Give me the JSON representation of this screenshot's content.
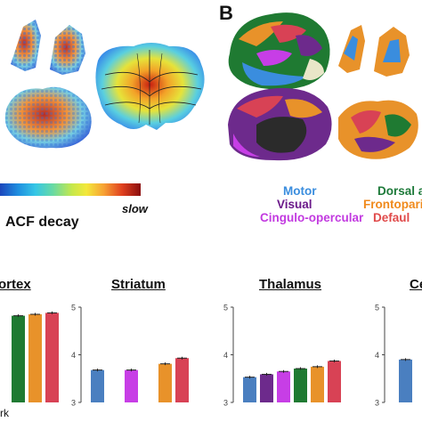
{
  "panel_b_letter": "B",
  "colorbar": {
    "end_label": "slow",
    "title": "ACF decay"
  },
  "legend": [
    {
      "label": "Motor",
      "color": "#3a8dde"
    },
    {
      "label": "Visual",
      "color": "#6b1a8a"
    },
    {
      "label": "Cingulo-opercular",
      "color": "#c23ae0"
    },
    {
      "label": "Dorsal a",
      "color": "#1e7a3a"
    },
    {
      "label": "Frontopari",
      "color": "#f08a1c"
    },
    {
      "label": "Defaul",
      "color": "#e04a4a"
    }
  ],
  "left_fragment": "rk",
  "network_colors": {
    "motor": "#4a7fc0",
    "visual": "#6d2a8c",
    "cingulo": "#c73ee6",
    "dorsal": "#1f7a32",
    "fronto": "#e8922a",
    "default": "#d84255"
  },
  "chart_data": [
    {
      "type": "bar",
      "title": "ortex",
      "ylim": [
        3,
        5
      ],
      "series": [
        {
          "values": [
            null,
            4.82,
            4.85,
            4.88
          ],
          "colors": [
            "#1f7a32",
            "#1f7a32",
            "#e8922a",
            "#d84255"
          ]
        }
      ]
    },
    {
      "type": "bar",
      "title": "Striatum",
      "ylim": [
        3,
        5
      ],
      "yticks": [
        3,
        4,
        5
      ],
      "series": [
        {
          "values": [
            3.68,
            null,
            3.68,
            null,
            3.81,
            3.93
          ],
          "colors": [
            "#4a7fc0",
            "#6d2a8c",
            "#c73ee6",
            "#1f7a32",
            "#e8922a",
            "#d84255"
          ]
        }
      ]
    },
    {
      "type": "bar",
      "title": "Thalamus",
      "ylim": [
        3,
        5
      ],
      "yticks": [
        3,
        4,
        5
      ],
      "series": [
        {
          "values": [
            3.53,
            3.59,
            3.65,
            3.71,
            3.75,
            3.87
          ],
          "colors": [
            "#4a7fc0",
            "#6d2a8c",
            "#c73ee6",
            "#1f7a32",
            "#e8922a",
            "#d84255"
          ]
        }
      ]
    },
    {
      "type": "bar",
      "title": "Ce",
      "ylim": [
        3,
        5
      ],
      "yticks": [
        3,
        4,
        5
      ],
      "series": [
        {
          "values": [
            3.9
          ],
          "colors": [
            "#4a7fc0"
          ]
        }
      ]
    }
  ]
}
